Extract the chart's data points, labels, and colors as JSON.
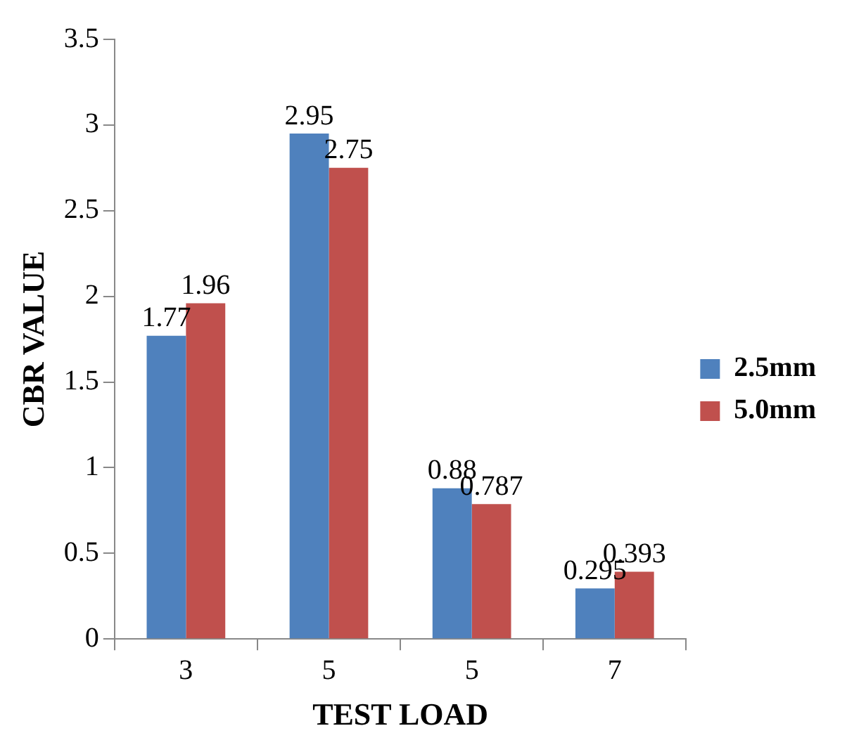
{
  "chart_data": {
    "type": "bar",
    "xlabel": "TEST LOAD",
    "ylabel": "CBR VALUE",
    "categories": [
      "3",
      "5",
      "5",
      "7"
    ],
    "series": [
      {
        "name": "2.5mm",
        "color": "#4f81bd",
        "values": [
          1.77,
          2.95,
          0.88,
          0.295
        ]
      },
      {
        "name": "5.0mm",
        "color": "#c0504d",
        "values": [
          1.96,
          2.75,
          0.787,
          0.393
        ]
      }
    ],
    "ylim": [
      0,
      3.5
    ],
    "yticks": [
      0,
      0.5,
      1,
      1.5,
      2,
      2.5,
      3,
      3.5
    ],
    "grid": false,
    "legend": "right",
    "data_labels": true
  }
}
